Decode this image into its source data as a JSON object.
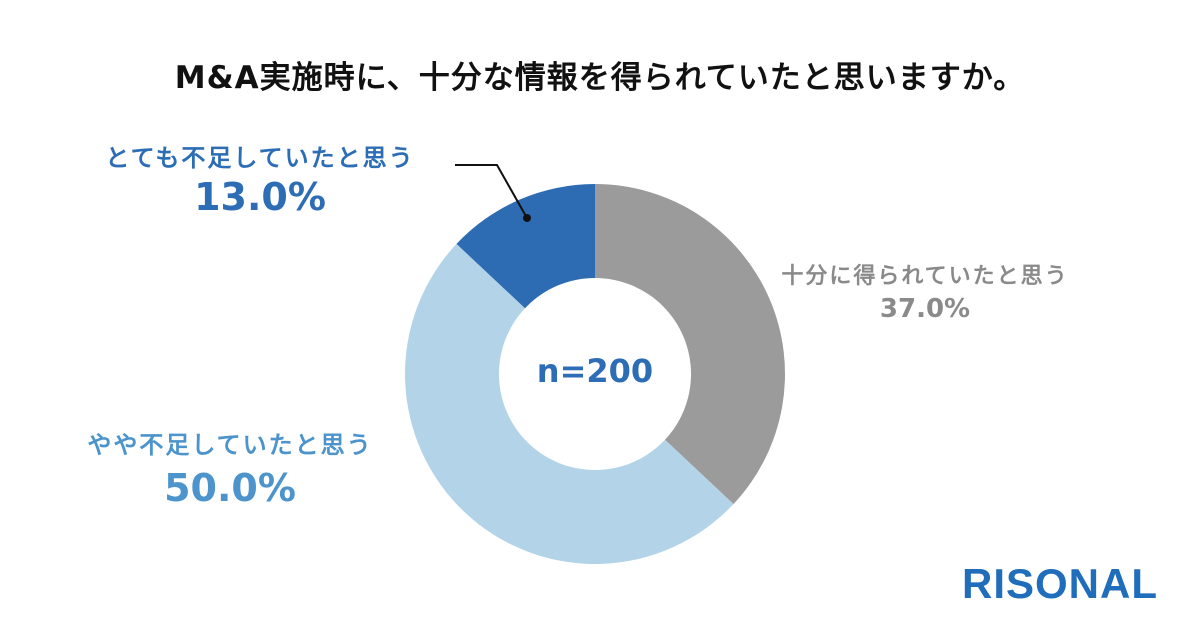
{
  "title": "M&A実施時に、十分な情報を得られていたと思いますか。",
  "center_label": "n=200",
  "logo": "RISONAL",
  "colors": {
    "strongly_insufficient": "#2d6cb3",
    "sufficient": "#9c9b9b",
    "somewhat_insufficient": "#b3d4e8",
    "title": "#111111",
    "logo": "#1f6dbb"
  },
  "labels": [
    {
      "category": "とても不足していたと思う",
      "percent": "13.0%"
    },
    {
      "category": "十分に得られていたと思う",
      "percent": "37.0%"
    },
    {
      "category": "やや不足していたと思う",
      "percent": "50.0%"
    }
  ],
  "chart_data": {
    "type": "pie",
    "subtype": "donut",
    "title": "M&A実施時に、十分な情報を得られていたと思いますか。",
    "sample_size": "n=200",
    "categories": [
      "十分に得られていたと思う",
      "やや不足していたと思う",
      "とても不足していたと思う"
    ],
    "values": [
      37.0,
      50.0,
      13.0
    ],
    "unit": "%",
    "colors": [
      "#9c9b9b",
      "#b3d4e8",
      "#2d6cb3"
    ],
    "start_angle": "12 o'clock, clockwise",
    "legend": "none (direct labels)"
  }
}
